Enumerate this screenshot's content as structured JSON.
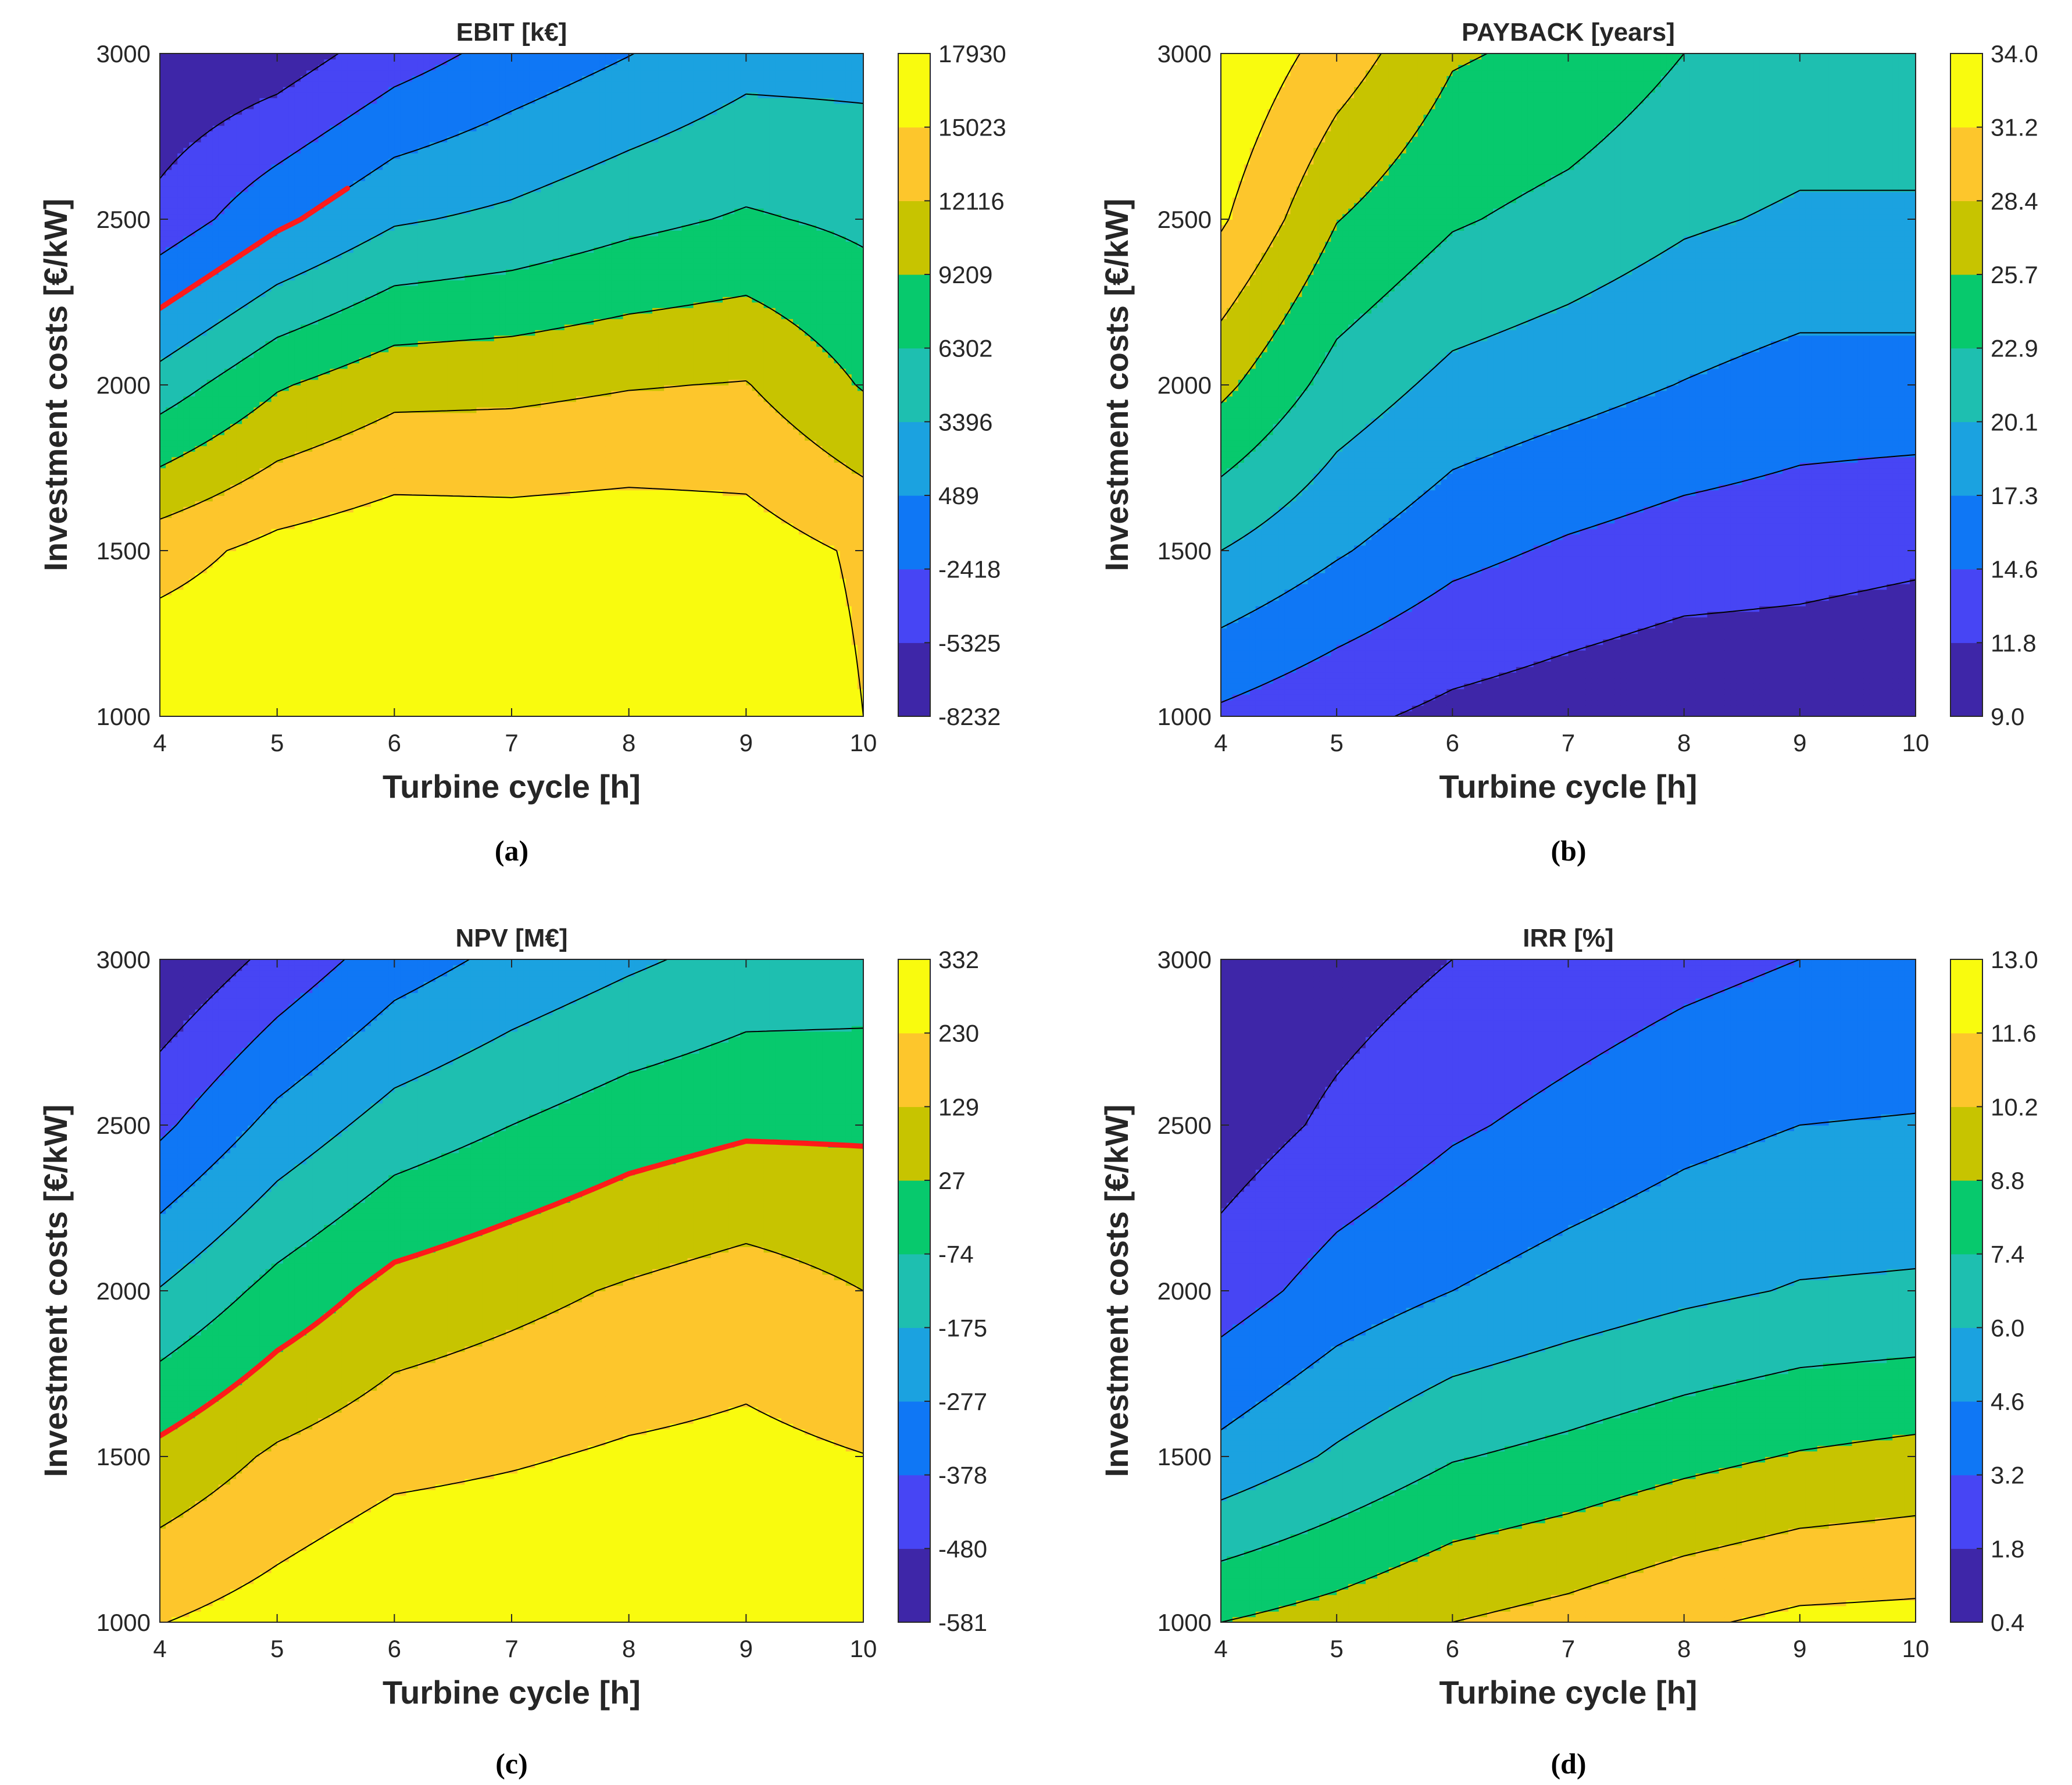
{
  "figure": {
    "palette": [
      "#3e26a8",
      "#4745f4",
      "#0f77f5",
      "#1ba2e0",
      "#1ebfb0",
      "#07c96d",
      "#c7c400",
      "#fdc62c",
      "#f9fb0e"
    ],
    "isoline_color": "#000000",
    "highlight_color": "#ff1a1a",
    "missing_value": "-"
  },
  "chart_data": [
    {
      "type": "contour",
      "id": "a",
      "title": "EBIT [k€]",
      "caption": "(a)",
      "xlabel": "Turbine cycle [h]",
      "ylabel": "Investment costs [€/kW]",
      "xlim": [
        4,
        10
      ],
      "ylim": [
        1000,
        3000
      ],
      "xticks": [
        "4",
        "5",
        "6",
        "7",
        "8",
        "9",
        "10"
      ],
      "yticks": [
        "1000",
        "1500",
        "2000",
        "2500",
        "3000"
      ],
      "x": [
        4,
        5,
        6,
        7,
        8,
        9,
        10
      ],
      "y": [
        1000,
        1500,
        2000,
        2500,
        3000
      ],
      "levels": [
        -8232,
        -5325,
        -2418,
        489,
        3396,
        6302,
        9209,
        12116,
        15023,
        17930
      ],
      "colorbar_ticks": [
        "17930",
        "15023",
        "12116",
        "9209",
        "6302",
        "3396",
        "489",
        "-2418",
        "-5325",
        "-8232"
      ],
      "z": [
        [
          17930,
          17930,
          17930,
          17930,
          17930,
          17930,
          15023
        ],
        [
          13855,
          15901,
          17003,
          16760,
          16919,
          16457,
          14600
        ],
        [
          4670,
          8900,
          11145,
          11340,
          11950,
          12255,
          8990
        ],
        [
          -4380,
          -170,
          3050,
          4040,
          5530,
          6620,
          5750
        ],
        [
          -8232,
          -7000,
          -3800,
          -1400,
          400,
          2350,
          2380
        ]
      ],
      "highlight_level": 489,
      "highlight_x_max": 5.6
    },
    {
      "type": "contour",
      "id": "b",
      "title": "PAYBACK [years]",
      "caption": "(b)",
      "xlabel": "Turbine cycle [h]",
      "ylabel": "Investment costs [€/kW]",
      "xlim": [
        4,
        10
      ],
      "ylim": [
        1000,
        3000
      ],
      "xticks": [
        "4",
        "5",
        "6",
        "7",
        "8",
        "9",
        "10"
      ],
      "yticks": [
        "1000",
        "1500",
        "2000",
        "2500",
        "3000"
      ],
      "x": [
        4,
        5,
        6,
        7,
        8,
        9,
        10
      ],
      "y": [
        1000,
        1500,
        2000,
        2500,
        3000
      ],
      "levels": [
        9.0,
        11.8,
        14.6,
        17.3,
        20.1,
        22.9,
        25.7,
        28.4,
        31.2,
        34.0
      ],
      "colorbar_ticks": [
        "34.0",
        "31.2",
        "28.4",
        "25.7",
        "22.9",
        "20.1",
        "17.3",
        "14.6",
        "11.8",
        "9.0"
      ],
      "z": [
        [
          14.1,
          12.5,
          11.1,
          10.3,
          9.5,
          9.5,
          9.0
        ],
        [
          20.1,
          17.6,
          15.4,
          14.2,
          13.3,
          12.9,
          12.4
        ],
        [
          26.4,
          21.8,
          19.3,
          18.3,
          17.2,
          16.2,
          16.2
        ],
        [
          31.6,
          25.8,
          23.2,
          22.0,
          20.5,
          19.7,
          19.7
        ],
        [
          34.0,
          29.9,
          26.0,
          25.0,
          22.9,
          22.0,
          22.0
        ]
      ]
    },
    {
      "type": "contour",
      "id": "c",
      "title": "NPV [M€]",
      "caption": "(c)",
      "xlabel": "Turbine cycle [h]",
      "ylabel": "Investment costs [€/kW]",
      "xlim": [
        4,
        10
      ],
      "ylim": [
        1000,
        3000
      ],
      "xticks": [
        "4",
        "5",
        "6",
        "7",
        "8",
        "9",
        "10"
      ],
      "yticks": [
        "1000",
        "1500",
        "2000",
        "2500",
        "3000"
      ],
      "x": [
        4,
        5,
        6,
        7,
        8,
        9,
        10
      ],
      "y": [
        1000,
        1500,
        2000,
        2500,
        3000
      ],
      "levels": [
        -581,
        -480,
        -378,
        -277,
        -175,
        -74,
        27,
        129,
        230,
        332
      ],
      "colorbar_ticks": [
        "332",
        "230",
        "129",
        "27",
        "-74",
        "-175",
        "-277",
        "-378",
        "-480",
        "-581"
      ],
      "z": [
        [
          227,
          275,
          332,
          332,
          332,
          332,
          332
        ],
        [
          55,
          145,
          200,
          220,
          243,
          255,
          232
        ],
        [
          -170,
          -40,
          60,
          100,
          140,
          176,
          129
        ],
        [
          -400,
          -244,
          -132,
          -74,
          -20,
          11,
          12
        ],
        [
          -581,
          -450,
          -325,
          -250,
          -192,
          -140,
          -135
        ]
      ],
      "highlight_level": 27
    },
    {
      "type": "contour",
      "id": "d",
      "title": "IRR [%]",
      "caption": "(d)",
      "xlabel": "Turbine cycle [h]",
      "ylabel": "Investment costs [€/kW]",
      "xlim": [
        4,
        10
      ],
      "ylim": [
        1000,
        3000
      ],
      "xticks": [
        "4",
        "5",
        "6",
        "7",
        "8",
        "9",
        "10"
      ],
      "yticks": [
        "1000",
        "1500",
        "2000",
        "2500",
        "3000"
      ],
      "x": [
        4,
        5,
        6,
        7,
        8,
        9,
        10
      ],
      "y": [
        1000,
        1500,
        2000,
        2500,
        3000
      ],
      "levels": [
        0.4,
        1.8,
        3.2,
        4.6,
        6.0,
        7.4,
        8.8,
        10.2,
        11.6,
        13.0
      ],
      "colorbar_ticks": [
        "13.0",
        "11.6",
        "10.2",
        "8.8",
        "7.4",
        "6.0",
        "4.6",
        "3.2",
        "1.8",
        "0.4"
      ],
      "z": [
        [
          8.8,
          9.4,
          10.2,
          10.7,
          11.4,
          11.9,
          12.0
        ],
        [
          5.0,
          6.2,
          7.3,
          7.8,
          8.4,
          8.9,
          9.2
        ],
        [
          2.5,
          3.8,
          4.6,
          5.2,
          5.7,
          6.1,
          6.2
        ],
        [
          1.0,
          2.1,
          3.0,
          3.6,
          4.2,
          4.6,
          4.7
        ],
        [
          0.4,
          1.1,
          1.8,
          2.3,
          2.8,
          3.2,
          3.3
        ]
      ]
    }
  ]
}
